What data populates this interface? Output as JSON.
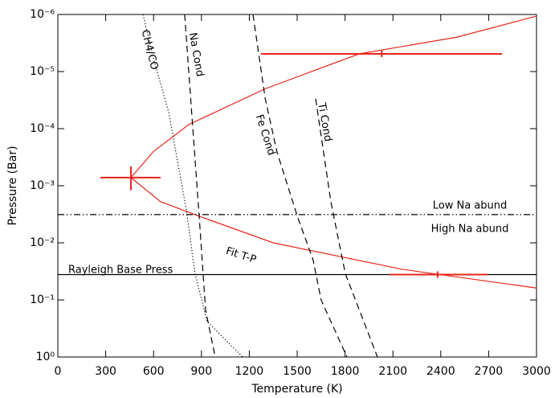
{
  "chart_data": {
    "type": "line",
    "x_label": "Temperature (K)",
    "y_label": "Pressure (Bar)",
    "xlim": [
      0,
      3000
    ],
    "xticks": [
      0,
      300,
      600,
      900,
      1200,
      1500,
      1800,
      2100,
      2400,
      2700,
      3000
    ],
    "ylim": [
      1,
      1e-06
    ],
    "log_y": true,
    "yticks": [
      {
        "value": 1e-06,
        "label": "10⁻⁶"
      },
      {
        "value": 1e-05,
        "label": "10⁻⁵"
      },
      {
        "value": 0.0001,
        "label": "10⁻⁴"
      },
      {
        "value": 0.001,
        "label": "10⁻³"
      },
      {
        "value": 0.01,
        "label": "10⁻²"
      },
      {
        "value": 0.1,
        "label": "10⁻¹"
      },
      {
        "value": 1,
        "label": "10⁰"
      }
    ],
    "series": [
      {
        "name": "Fit T-P",
        "color": "#e8251b",
        "style": "solid",
        "x": [
          3000,
          2500,
          1888,
          1300,
          820,
          600,
          458,
          644,
          896,
          1350,
          2155,
          3000
        ],
        "values": [
          1.07e-06,
          2.5e-06,
          4.9e-06,
          2e-05,
          8.5e-05,
          0.00025,
          0.00072,
          0.0019,
          0.0035,
          0.01,
          0.029,
          0.062
        ]
      },
      {
        "name": "CH4/CO",
        "color": "#000000",
        "style": "dotted",
        "x": [
          534,
          600,
          695,
          805,
          860,
          936,
          1158
        ],
        "values": [
          1e-06,
          6e-06,
          5.2e-05,
          0.0026,
          0.035,
          0.24,
          1
        ]
      },
      {
        "name": "Na Cond",
        "color": "#000000",
        "style": "dashed",
        "x": [
          795,
          846,
          886,
          926,
          986
        ],
        "values": [
          1e-06,
          0.0001,
          0.0035,
          0.15,
          1
        ]
      },
      {
        "name": "Fe Cond",
        "color": "#000000",
        "style": "dashed",
        "x": [
          1223,
          1300,
          1374,
          1505,
          1600,
          1650,
          1812
        ],
        "values": [
          1e-06,
          3e-05,
          0.00026,
          0.0037,
          0.02,
          0.1,
          1
        ]
      },
      {
        "name": "Ti Cond",
        "color": "#000000",
        "style": "dashed",
        "x": [
          1616,
          1711,
          1802,
          2003
        ],
        "values": [
          3e-05,
          0.0019,
          0.035,
          1
        ]
      },
      {
        "name": "Rayleigh Base Press",
        "color": "#000000",
        "style": "solid",
        "x": [
          0,
          3000
        ],
        "values": [
          0.036,
          0.036
        ]
      },
      {
        "color": "#000000",
        "style": "dashdotdot",
        "x": [
          0,
          3000
        ],
        "values": [
          0.0032,
          0.0032
        ]
      }
    ],
    "error_bars": [
      {
        "color": "#e8251b",
        "x": 458,
        "y": 0.00072,
        "xerr": [
          267,
          644
        ],
        "yerr": [
          0.00046,
          0.0012
        ]
      },
      {
        "color": "#e8251b",
        "x": 2030,
        "y": 4.9e-06,
        "xerr": [
          1273,
          2784
        ]
      },
      {
        "color": "#e8251b",
        "x": 2380,
        "y": 0.036,
        "xerr": [
          2079,
          2693
        ]
      }
    ],
    "annotations": [
      "Low Na abund",
      "High Na abund"
    ]
  }
}
